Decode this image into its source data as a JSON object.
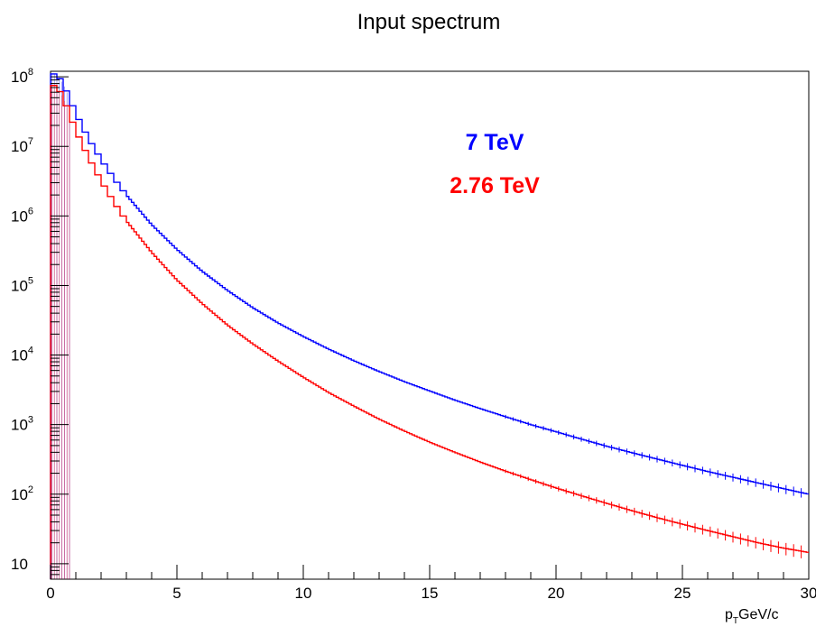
{
  "chart_data": {
    "type": "line",
    "title": "Input spectrum",
    "xlabel_main": "p",
    "xlabel_sub": "T",
    "xlabel_unit": "GeV/c",
    "ylabel": "",
    "xlim": [
      0,
      30
    ],
    "ylim": [
      6,
      120000000
    ],
    "log_y": true,
    "grid": false,
    "legend_position": "top-center",
    "x_ticks": [
      "0",
      "5",
      "10",
      "15",
      "20",
      "25",
      "30"
    ],
    "y_ticks": [
      {
        "base": "10",
        "exp": ""
      },
      {
        "base": "10",
        "exp": "2"
      },
      {
        "base": "10",
        "exp": "3"
      },
      {
        "base": "10",
        "exp": "4"
      },
      {
        "base": "10",
        "exp": "5"
      },
      {
        "base": "10",
        "exp": "6"
      },
      {
        "base": "10",
        "exp": "7"
      },
      {
        "base": "10",
        "exp": "8"
      }
    ],
    "series": [
      {
        "name": "7 TeV",
        "color": "#0000ff",
        "points": [
          [
            0,
            10
          ],
          [
            0.25,
            110000000
          ],
          [
            0.5,
            80000000
          ],
          [
            1,
            30000000
          ],
          [
            1.5,
            13000000
          ],
          [
            2,
            6500000
          ],
          [
            2.5,
            3500000
          ],
          [
            3,
            2000000
          ],
          [
            4,
            750000
          ],
          [
            5,
            330000
          ],
          [
            6,
            160000
          ],
          [
            7,
            85000
          ],
          [
            8,
            48000
          ],
          [
            9,
            29000
          ],
          [
            10,
            18500
          ],
          [
            11,
            12200
          ],
          [
            12,
            8300
          ],
          [
            13,
            5800
          ],
          [
            14,
            4150
          ],
          [
            15,
            3050
          ],
          [
            16,
            2250
          ],
          [
            17,
            1700
          ],
          [
            18,
            1300
          ],
          [
            19,
            1000
          ],
          [
            20,
            790
          ],
          [
            21,
            620
          ],
          [
            22,
            490
          ],
          [
            23,
            395
          ],
          [
            24,
            320
          ],
          [
            25,
            260
          ],
          [
            26,
            212
          ],
          [
            27,
            175
          ],
          [
            28,
            145
          ],
          [
            29,
            120
          ],
          [
            30,
            100
          ]
        ]
      },
      {
        "name": "2.76 TeV",
        "color": "#ff0000",
        "points": [
          [
            0,
            10
          ],
          [
            0.25,
            75000000
          ],
          [
            0.5,
            50000000
          ],
          [
            1,
            17000000
          ],
          [
            1.5,
            7000000
          ],
          [
            2,
            3200000
          ],
          [
            2.5,
            1600000
          ],
          [
            3,
            850000
          ],
          [
            4,
            300000
          ],
          [
            5,
            120000
          ],
          [
            6,
            55000
          ],
          [
            7,
            27000
          ],
          [
            8,
            14500
          ],
          [
            9,
            8200
          ],
          [
            10,
            4800
          ],
          [
            11,
            2900
          ],
          [
            12,
            1850
          ],
          [
            13,
            1200
          ],
          [
            14,
            810
          ],
          [
            15,
            560
          ],
          [
            16,
            400
          ],
          [
            17,
            290
          ],
          [
            18,
            215
          ],
          [
            19,
            162
          ],
          [
            20,
            123
          ],
          [
            21,
            95
          ],
          [
            22,
            74
          ],
          [
            23,
            58
          ],
          [
            24,
            46
          ],
          [
            25,
            37
          ],
          [
            26,
            30
          ],
          [
            27,
            24.5
          ],
          [
            28,
            20
          ],
          [
            29,
            16.8
          ],
          [
            30,
            14.5
          ]
        ]
      }
    ]
  }
}
